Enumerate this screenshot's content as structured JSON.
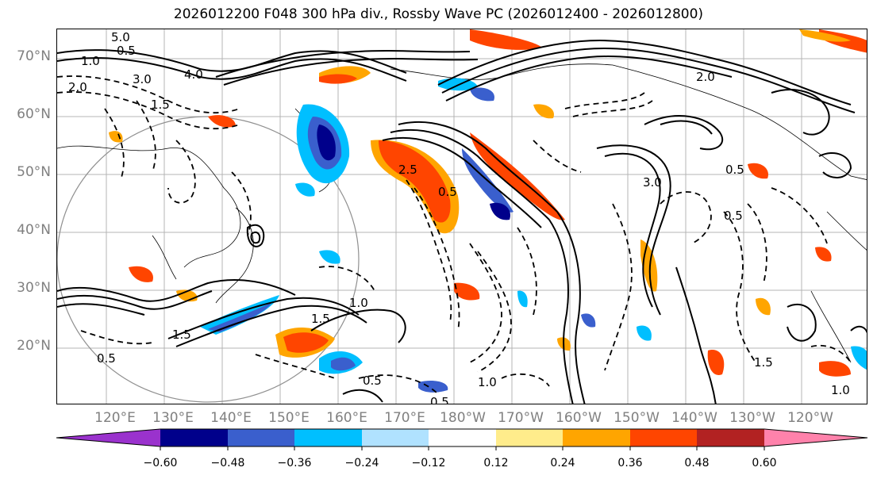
{
  "title": "2026012200 F048 300 hPa div., Rossby Wave PC (2026012400 - 2026012800)",
  "map": {
    "lat_labels": [
      "70°N",
      "60°N",
      "50°N",
      "40°N",
      "30°N",
      "20°N"
    ],
    "lon_labels": [
      "120°E",
      "130°E",
      "140°E",
      "150°E",
      "160°E",
      "170°E",
      "180°W",
      "170°W",
      "160°W",
      "150°W",
      "140°W",
      "130°W",
      "120°W"
    ],
    "contour_labels": [
      "5.0",
      "0.5",
      "1.0",
      "2.0",
      "3.0",
      "1.5",
      "4.0",
      "2.5",
      "0.5",
      "3.0",
      "1.5",
      "0.5",
      "1.0",
      "1.5",
      "0.5",
      "1.0",
      "1.5",
      "0.5",
      "1.0",
      "0.5",
      "2.0",
      "0.5"
    ]
  },
  "colorbar": {
    "ticks": [
      "−0.60",
      "−0.48",
      "−0.36",
      "−0.24",
      "−0.12",
      "0.12",
      "0.24",
      "0.36",
      "0.48",
      "0.60"
    ],
    "colors": [
      "#9a32cd",
      "#00008b",
      "#3a5fcd",
      "#00bfff",
      "#b0e2ff",
      "#ffffff",
      "#ffec8b",
      "#ffa500",
      "#ff4500",
      "#b22222",
      "#ff82ab"
    ]
  }
}
